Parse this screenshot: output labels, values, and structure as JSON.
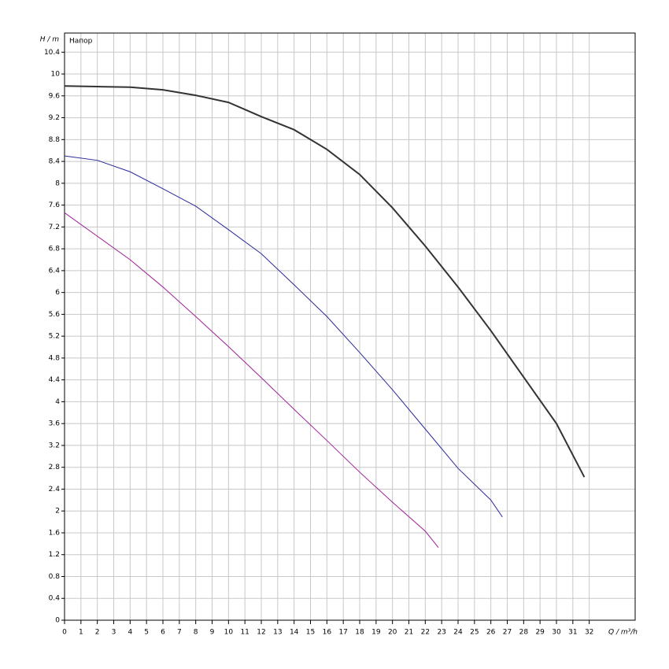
{
  "chart_data": {
    "type": "line",
    "y_label": "H / m",
    "x_label": "Q / m³/h",
    "legend_text": "Напор",
    "xlim": [
      0,
      34.8
    ],
    "ylim": [
      0,
      10.75
    ],
    "xticks": [
      0,
      1,
      2,
      3,
      4,
      5,
      6,
      7,
      8,
      9,
      10,
      11,
      12,
      13,
      14,
      15,
      16,
      17,
      18,
      19,
      20,
      21,
      22,
      23,
      24,
      25,
      26,
      27,
      28,
      29,
      30,
      31,
      32
    ],
    "yticks": [
      0,
      0.4,
      0.8,
      1.2,
      1.6,
      2,
      2.4,
      2.8,
      3.2,
      3.6,
      4,
      4.4,
      4.8,
      5.2,
      5.6,
      6,
      6.4,
      6.8,
      7.2,
      7.6,
      8,
      8.4,
      8.8,
      9.2,
      9.6,
      10,
      10.4
    ],
    "grid": true,
    "series": [
      {
        "color": "#333333",
        "x": [
          0,
          2,
          4,
          6,
          8,
          10,
          12,
          14,
          16,
          18,
          20,
          22,
          24,
          26,
          28,
          30,
          31.7
        ],
        "values": [
          9.78,
          9.77,
          9.76,
          9.71,
          9.61,
          9.48,
          9.22,
          8.98,
          8.62,
          8.16,
          7.55,
          6.85,
          6.1,
          5.3,
          4.45,
          3.6,
          2.62
        ]
      },
      {
        "color": "#2a2a9a",
        "x": [
          0,
          2,
          4,
          6,
          8,
          10,
          12,
          14,
          16,
          18,
          20,
          22,
          24,
          26,
          26.7
        ],
        "values": [
          8.5,
          8.42,
          8.21,
          7.9,
          7.58,
          7.15,
          6.71,
          6.14,
          5.56,
          4.9,
          4.22,
          3.5,
          2.78,
          2.2,
          1.89
        ]
      },
      {
        "color": "#a0209a",
        "x": [
          0,
          2,
          4,
          6,
          8,
          10,
          12,
          14,
          16,
          18,
          20,
          22,
          22.8
        ],
        "values": [
          7.46,
          7.03,
          6.6,
          6.1,
          5.56,
          5.01,
          4.44,
          3.86,
          3.29,
          2.71,
          2.16,
          1.63,
          1.33
        ]
      }
    ]
  }
}
